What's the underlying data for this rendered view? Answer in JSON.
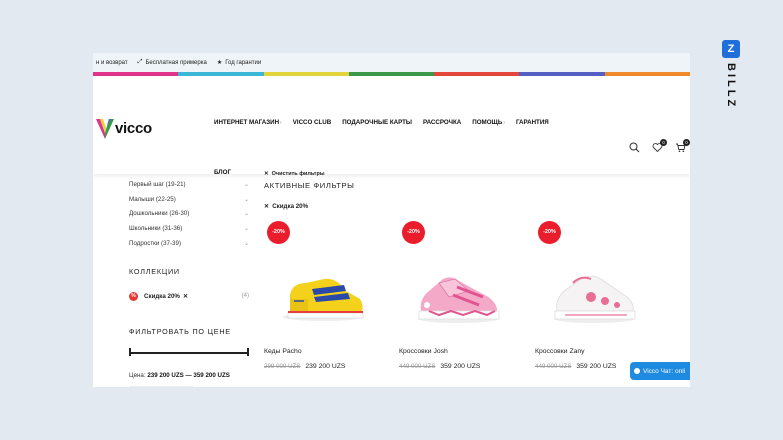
{
  "topbar": {
    "items": [
      {
        "icon": "return-icon",
        "label": "н и возврат"
      },
      {
        "icon": "expand-icon",
        "label": "Бесплатная примерка"
      },
      {
        "icon": "star-icon",
        "label": "Год гарантии"
      }
    ]
  },
  "stripe_colors": [
    "#e0338a",
    "#3bb7d8",
    "#e3d43c",
    "#3a9a4a",
    "#e5473c",
    "#5560c4",
    "#f08a2b"
  ],
  "logo": {
    "text": "vicco"
  },
  "nav": {
    "items": [
      "ИНТЕРНЕТ МАГАЗИН",
      "VICCO CLUB",
      "ПОДАРОЧНЫЕ КАРТЫ",
      "РАССРОЧКА",
      "ПОМОЩЬ",
      "ГАРАНТИЯ"
    ],
    "blog": "БЛОГ"
  },
  "header_icons": {
    "wishlist_count": "0",
    "cart_count": "0"
  },
  "sidebar": {
    "sizes": [
      "Первый шаг (19-21)",
      "Малыши (22-25)",
      "Дошкольники (26-30)",
      "Школьники (31-36)",
      "Подростки (37-39)"
    ],
    "collections_title": "КОЛЛЕКЦИИ",
    "collection": {
      "label": "Скидка 20%",
      "count": "(4)"
    },
    "price_title": "ФИЛЬТРОВАТЬ ПО ЦЕНЕ",
    "price_label": "Цена:",
    "price_range": "239 200 UZS — 359 200 UZS"
  },
  "active_filters": {
    "clear": "Очистить фильтры",
    "title": "АКТИВНЫЕ ФИЛЬТРЫ",
    "chip": "Скидка 20%"
  },
  "products": [
    {
      "badge": "-20%",
      "name": "Кеды Pacho",
      "old_price": "299 000 UZS",
      "price": "239 200 UZS"
    },
    {
      "badge": "-20%",
      "name": "Кроссовки Josh",
      "old_price": "449 000 UZS",
      "price": "359 200 UZS"
    },
    {
      "badge": "-20%",
      "name": "Кроссовки Zany",
      "old_price": "449 000 UZS",
      "price": "359 200 UZS"
    }
  ],
  "brand": {
    "letter": "Z",
    "text": "BILLZ"
  },
  "chat": {
    "label": "Vicco Чат: onli"
  }
}
